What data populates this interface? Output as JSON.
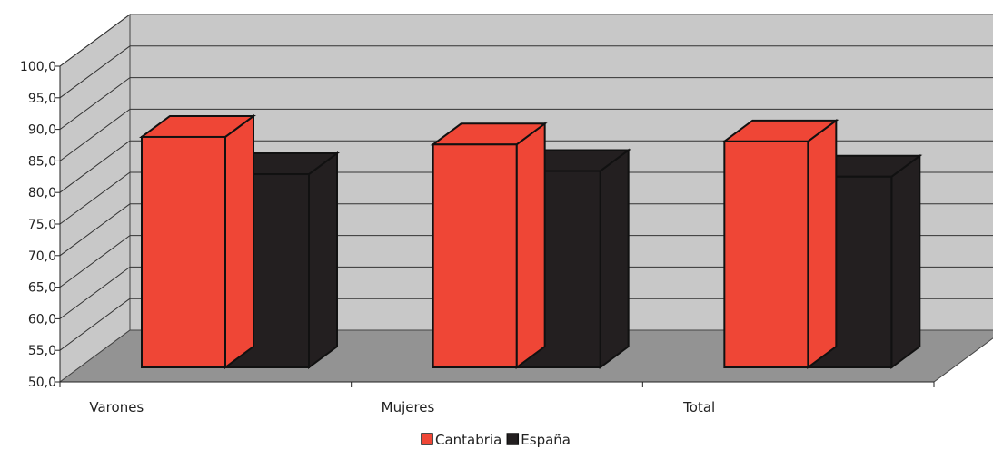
{
  "chart_data": {
    "type": "bar",
    "categories": [
      "Varones",
      "Mujeres",
      "Total"
    ],
    "series": [
      {
        "name": "Cantabria",
        "color": "#ef4636",
        "values": [
          88.8,
          87.6,
          88.1
        ]
      },
      {
        "name": "España",
        "color": "#231f20",
        "values": [
          82.9,
          83.4,
          82.5
        ]
      }
    ],
    "ylim": [
      50,
      100
    ],
    "yticks": [
      "50,0",
      "55,0",
      "60,0",
      "65,0",
      "70,0",
      "75,0",
      "80,0",
      "85,0",
      "90,0",
      "95,0",
      "100,0"
    ],
    "grid": true,
    "legend": "bottom-center",
    "colors": {
      "wall": "#c8c8c8",
      "floor": "#939393"
    }
  }
}
